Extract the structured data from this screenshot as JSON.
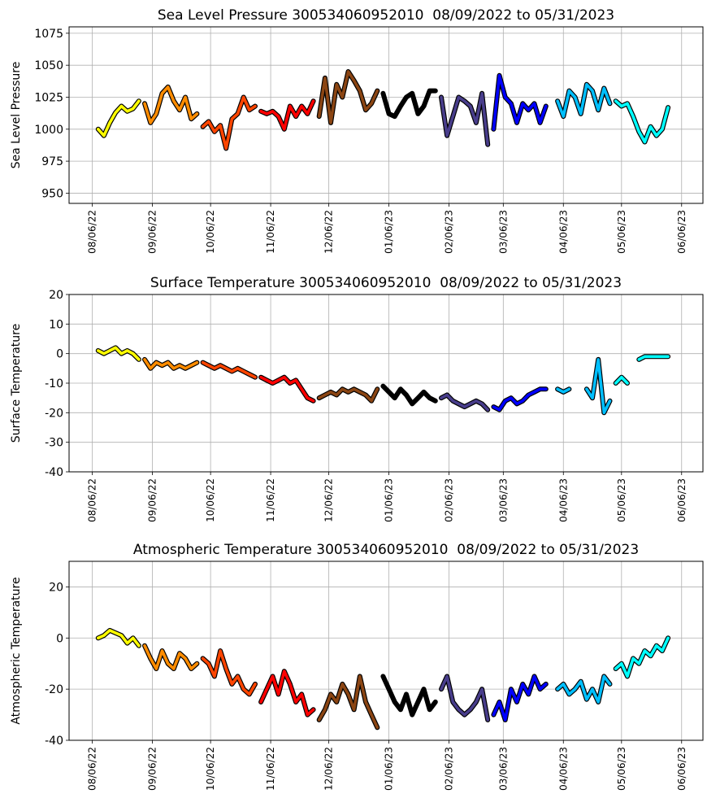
{
  "chart_data": [
    {
      "type": "scatter",
      "title": "Sea Level Pressure 300534060952010  08/09/2022 to 05/31/2023",
      "ylabel": "Sea Level Pressure",
      "xlim": [
        "07/25/22",
        "06/17/23"
      ],
      "xticks": [
        "08/06/22",
        "09/06/22",
        "10/06/22",
        "11/06/22",
        "12/06/22",
        "01/06/23",
        "02/06/23",
        "03/06/23",
        "04/06/23",
        "05/06/23",
        "06/06/23"
      ],
      "ylim": [
        942,
        1080
      ],
      "yticks": [
        950,
        975,
        1000,
        1025,
        1050,
        1075
      ],
      "grid": true,
      "series": [
        {
          "color": "#ffff00",
          "x": [
            "08/09/22",
            "08/12/22",
            "08/15/22",
            "08/18/22",
            "08/21/22",
            "08/24/22",
            "08/27/22",
            "08/30/22"
          ],
          "values": [
            1000,
            995,
            1005,
            1013,
            1018,
            1014,
            1016,
            1022
          ]
        },
        {
          "color": "#ff8c00",
          "x": [
            "09/02/22",
            "09/05/22",
            "09/08/22",
            "09/11/22",
            "09/14/22",
            "09/17/22",
            "09/20/22",
            "09/23/22",
            "09/26/22",
            "09/29/22"
          ],
          "values": [
            1020,
            1005,
            1012,
            1028,
            1033,
            1022,
            1015,
            1025,
            1008,
            1012
          ]
        },
        {
          "color": "#ff4500",
          "x": [
            "10/02/22",
            "10/05/22",
            "10/08/22",
            "10/11/22",
            "10/14/22",
            "10/17/22",
            "10/20/22",
            "10/23/22",
            "10/26/22",
            "10/29/22"
          ],
          "values": [
            1002,
            1006,
            998,
            1003,
            985,
            1008,
            1012,
            1025,
            1015,
            1018
          ]
        },
        {
          "color": "#ff0000",
          "x": [
            "11/01/22",
            "11/04/22",
            "11/07/22",
            "11/10/22",
            "11/13/22",
            "11/16/22",
            "11/19/22",
            "11/22/22",
            "11/25/22",
            "11/28/22"
          ],
          "values": [
            1014,
            1012,
            1014,
            1010,
            1000,
            1018,
            1010,
            1018,
            1012,
            1022
          ]
        },
        {
          "color": "#8b4513",
          "x": [
            "12/01/22",
            "12/04/22",
            "12/07/22",
            "12/10/22",
            "12/13/22",
            "12/16/22",
            "12/19/22",
            "12/22/22",
            "12/25/22",
            "12/28/22",
            "12/31/22"
          ],
          "values": [
            1010,
            1040,
            1005,
            1035,
            1025,
            1045,
            1038,
            1030,
            1015,
            1020,
            1030
          ]
        },
        {
          "color": "#000000",
          "x": [
            "01/03/23",
            "01/06/23",
            "01/09/23",
            "01/12/23",
            "01/15/23",
            "01/18/23",
            "01/21/23",
            "01/24/23",
            "01/27/23",
            "01/30/23"
          ],
          "values": [
            1028,
            1012,
            1010,
            1018,
            1025,
            1028,
            1012,
            1018,
            1030,
            1030
          ]
        },
        {
          "color": "#483d8b",
          "x": [
            "02/02/23",
            "02/05/23",
            "02/08/23",
            "02/11/23",
            "02/14/23",
            "02/17/23",
            "02/20/23",
            "02/23/23",
            "02/26/23"
          ],
          "values": [
            1025,
            995,
            1010,
            1025,
            1022,
            1018,
            1005,
            1028,
            988
          ]
        },
        {
          "color": "#0000ff",
          "x": [
            "03/01/23",
            "03/04/23",
            "03/07/23",
            "03/10/23",
            "03/13/23",
            "03/16/23",
            "03/19/23",
            "03/22/23",
            "03/25/23",
            "03/28/23"
          ],
          "values": [
            1000,
            1042,
            1025,
            1020,
            1005,
            1020,
            1015,
            1020,
            1005,
            1018
          ]
        },
        {
          "color": "#00bfff",
          "x": [
            "04/03/23",
            "04/06/23",
            "04/09/23",
            "04/12/23",
            "04/15/23",
            "04/18/23",
            "04/21/23",
            "04/24/23",
            "04/27/23",
            "04/30/23"
          ],
          "values": [
            1022,
            1010,
            1030,
            1025,
            1012,
            1035,
            1030,
            1015,
            1032,
            1020
          ]
        },
        {
          "color": "#00ffff",
          "x": [
            "05/03/23",
            "05/06/23",
            "05/09/23",
            "05/12/23",
            "05/15/23",
            "05/18/23",
            "05/21/23",
            "05/24/23",
            "05/27/23",
            "05/30/23"
          ],
          "values": [
            1022,
            1018,
            1020,
            1010,
            998,
            990,
            1002,
            995,
            1000,
            1017
          ]
        }
      ]
    },
    {
      "type": "scatter",
      "title": "Surface Temperature 300534060952010  08/09/2022 to 05/31/2023",
      "ylabel": "Surface Temperature",
      "xlim": [
        "07/25/22",
        "06/17/23"
      ],
      "xticks": [
        "08/06/22",
        "09/06/22",
        "10/06/22",
        "11/06/22",
        "12/06/22",
        "01/06/23",
        "02/06/23",
        "03/06/23",
        "04/06/23",
        "05/06/23",
        "06/06/23"
      ],
      "ylim": [
        -40,
        20
      ],
      "yticks": [
        -40,
        -30,
        -20,
        -10,
        0,
        10,
        20
      ],
      "grid": true,
      "series": [
        {
          "color": "#ffff00",
          "x": [
            "08/09/22",
            "08/12/22",
            "08/15/22",
            "08/18/22",
            "08/21/22",
            "08/24/22",
            "08/27/22",
            "08/30/22"
          ],
          "values": [
            1,
            0,
            1,
            2,
            0,
            1,
            0,
            -2
          ]
        },
        {
          "color": "#ff8c00",
          "x": [
            "09/02/22",
            "09/05/22",
            "09/08/22",
            "09/11/22",
            "09/14/22",
            "09/17/22",
            "09/20/22",
            "09/23/22",
            "09/26/22",
            "09/29/22"
          ],
          "values": [
            -2,
            -5,
            -3,
            -4,
            -3,
            -5,
            -4,
            -5,
            -4,
            -3
          ]
        },
        {
          "color": "#ff4500",
          "x": [
            "10/02/22",
            "10/05/22",
            "10/08/22",
            "10/11/22",
            "10/14/22",
            "10/17/22",
            "10/20/22",
            "10/23/22",
            "10/26/22",
            "10/29/22"
          ],
          "values": [
            -3,
            -4,
            -5,
            -4,
            -5,
            -6,
            -5,
            -6,
            -7,
            -8
          ]
        },
        {
          "color": "#ff0000",
          "x": [
            "11/01/22",
            "11/04/22",
            "11/07/22",
            "11/10/22",
            "11/13/22",
            "11/16/22",
            "11/19/22",
            "11/22/22",
            "11/25/22",
            "11/28/22"
          ],
          "values": [
            -8,
            -9,
            -10,
            -9,
            -8,
            -10,
            -9,
            -12,
            -15,
            -16
          ]
        },
        {
          "color": "#8b4513",
          "x": [
            "12/01/22",
            "12/04/22",
            "12/07/22",
            "12/10/22",
            "12/13/22",
            "12/16/22",
            "12/19/22",
            "12/22/22",
            "12/25/22",
            "12/28/22",
            "12/31/22"
          ],
          "values": [
            -15,
            -14,
            -13,
            -14,
            -12,
            -13,
            -12,
            -13,
            -14,
            -16,
            -12
          ]
        },
        {
          "color": "#000000",
          "x": [
            "01/03/23",
            "01/06/23",
            "01/09/23",
            "01/12/23",
            "01/15/23",
            "01/18/23",
            "01/21/23",
            "01/24/23",
            "01/27/23",
            "01/30/23"
          ],
          "values": [
            -11,
            -13,
            -15,
            -12,
            -14,
            -17,
            -15,
            -13,
            -15,
            -16
          ]
        },
        {
          "color": "#483d8b",
          "x": [
            "02/02/23",
            "02/05/23",
            "02/08/23",
            "02/11/23",
            "02/14/23",
            "02/17/23",
            "02/20/23",
            "02/23/23",
            "02/26/23"
          ],
          "values": [
            -15,
            -14,
            -16,
            -17,
            -18,
            -17,
            -16,
            -17,
            -19
          ]
        },
        {
          "color": "#0000ff",
          "x": [
            "03/01/23",
            "03/04/23",
            "03/07/23",
            "03/10/23",
            "03/13/23",
            "03/16/23",
            "03/19/23",
            "03/22/23",
            "03/25/23",
            "03/28/23"
          ],
          "values": [
            -18,
            -19,
            -16,
            -15,
            -17,
            -16,
            -14,
            -13,
            -12,
            -12
          ]
        },
        {
          "color": "#00bfff",
          "x": [
            "04/03/23",
            "04/06/23",
            "04/09/23",
            "04/12/23",
            "04/15/23",
            "04/18/23",
            "04/21/23",
            "04/24/23",
            "04/27/23",
            "04/30/23"
          ],
          "values": [
            -12,
            -13,
            -12,
            null,
            null,
            -12,
            -15,
            -2,
            -20,
            -16
          ]
        },
        {
          "color": "#00ffff",
          "x": [
            "05/03/23",
            "05/06/23",
            "05/09/23",
            "05/12/23",
            "05/15/23",
            "05/18/23",
            "05/21/23",
            "05/24/23",
            "05/27/23",
            "05/30/23"
          ],
          "values": [
            -10,
            -8,
            -10,
            null,
            -2,
            -1,
            -1,
            -1,
            -1,
            -1
          ]
        }
      ]
    },
    {
      "type": "scatter",
      "title": "Atmospheric Temperature 300534060952010  08/09/2022 to 05/31/2023",
      "ylabel": "Atmospheric Temperature",
      "xlim": [
        "07/25/22",
        "06/17/23"
      ],
      "xticks": [
        "08/06/22",
        "09/06/22",
        "10/06/22",
        "11/06/22",
        "12/06/22",
        "01/06/23",
        "02/06/23",
        "03/06/23",
        "04/06/23",
        "05/06/23",
        "06/06/23"
      ],
      "ylim": [
        -40,
        30
      ],
      "yticks": [
        -40,
        -20,
        0,
        20
      ],
      "grid": true,
      "series": [
        {
          "color": "#ffff00",
          "x": [
            "08/09/22",
            "08/12/22",
            "08/15/22",
            "08/18/22",
            "08/21/22",
            "08/24/22",
            "08/27/22",
            "08/30/22"
          ],
          "values": [
            0,
            1,
            3,
            2,
            1,
            -2,
            0,
            -3
          ]
        },
        {
          "color": "#ff8c00",
          "x": [
            "09/02/22",
            "09/05/22",
            "09/08/22",
            "09/11/22",
            "09/14/22",
            "09/17/22",
            "09/20/22",
            "09/23/22",
            "09/26/22",
            "09/29/22"
          ],
          "values": [
            -3,
            -8,
            -12,
            -5,
            -10,
            -12,
            -6,
            -8,
            -12,
            -10
          ]
        },
        {
          "color": "#ff4500",
          "x": [
            "10/02/22",
            "10/05/22",
            "10/08/22",
            "10/11/22",
            "10/14/22",
            "10/17/22",
            "10/20/22",
            "10/23/22",
            "10/26/22",
            "10/29/22"
          ],
          "values": [
            -8,
            -10,
            -15,
            -5,
            -12,
            -18,
            -15,
            -20,
            -22,
            -18
          ]
        },
        {
          "color": "#ff0000",
          "x": [
            "11/01/22",
            "11/04/22",
            "11/07/22",
            "11/10/22",
            "11/13/22",
            "11/16/22",
            "11/19/22",
            "11/22/22",
            "11/25/22",
            "11/28/22"
          ],
          "values": [
            -25,
            -20,
            -15,
            -22,
            -13,
            -18,
            -25,
            -22,
            -30,
            -28
          ]
        },
        {
          "color": "#8b4513",
          "x": [
            "12/01/22",
            "12/04/22",
            "12/07/22",
            "12/10/22",
            "12/13/22",
            "12/16/22",
            "12/19/22",
            "12/22/22",
            "12/25/22",
            "12/28/22",
            "12/31/22"
          ],
          "values": [
            -32,
            -28,
            -22,
            -25,
            -18,
            -22,
            -28,
            -15,
            -25,
            -30,
            -35
          ]
        },
        {
          "color": "#000000",
          "x": [
            "01/03/23",
            "01/06/23",
            "01/09/23",
            "01/12/23",
            "01/15/23",
            "01/18/23",
            "01/21/23",
            "01/24/23",
            "01/27/23",
            "01/30/23"
          ],
          "values": [
            -15,
            -20,
            -25,
            -28,
            -22,
            -30,
            -25,
            -20,
            -28,
            -25
          ]
        },
        {
          "color": "#483d8b",
          "x": [
            "02/02/23",
            "02/05/23",
            "02/08/23",
            "02/11/23",
            "02/14/23",
            "02/17/23",
            "02/20/23",
            "02/23/23",
            "02/26/23"
          ],
          "values": [
            -20,
            -15,
            -25,
            -28,
            -30,
            -28,
            -25,
            -20,
            -32
          ]
        },
        {
          "color": "#0000ff",
          "x": [
            "03/01/23",
            "03/04/23",
            "03/07/23",
            "03/10/23",
            "03/13/23",
            "03/16/23",
            "03/19/23",
            "03/22/23",
            "03/25/23",
            "03/28/23"
          ],
          "values": [
            -30,
            -25,
            -32,
            -20,
            -25,
            -18,
            -22,
            -15,
            -20,
            -18
          ]
        },
        {
          "color": "#00bfff",
          "x": [
            "04/03/23",
            "04/06/23",
            "04/09/23",
            "04/12/23",
            "04/15/23",
            "04/18/23",
            "04/21/23",
            "04/24/23",
            "04/27/23",
            "04/30/23"
          ],
          "values": [
            -20,
            -18,
            -22,
            -20,
            -17,
            -24,
            -20,
            -25,
            -15,
            -18
          ]
        },
        {
          "color": "#00ffff",
          "x": [
            "05/03/23",
            "05/06/23",
            "05/09/23",
            "05/12/23",
            "05/15/23",
            "05/18/23",
            "05/21/23",
            "05/24/23",
            "05/27/23",
            "05/30/23"
          ],
          "values": [
            -12,
            -10,
            -15,
            -8,
            -10,
            -5,
            -7,
            -3,
            -5,
            0
          ]
        }
      ]
    }
  ]
}
